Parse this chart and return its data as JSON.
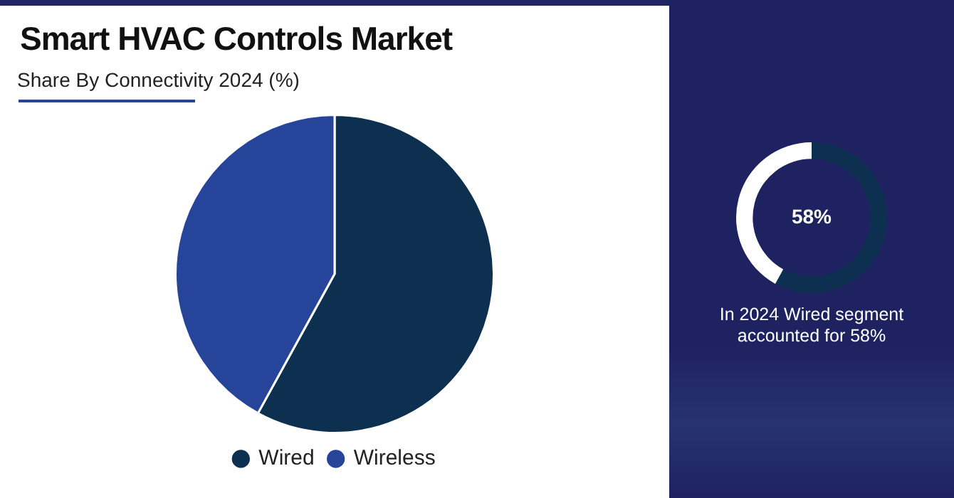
{
  "chart_data": [
    {
      "type": "pie",
      "title": "Smart HVAC Controls Market",
      "subtitle": "Share By Connectivity 2024 (%)",
      "categories": [
        "Wired",
        "Wireless"
      ],
      "values": [
        58,
        42
      ],
      "colors": [
        "#0e3050",
        "#26449a"
      ],
      "legend": "bottom"
    },
    {
      "type": "donut",
      "categories": [
        null,
        null
      ],
      "values": [
        58,
        42
      ],
      "colors": [
        "#0e3050",
        "#ffffff"
      ],
      "annotations": [
        "58%",
        "In 2024 Wired segment accounted for 58%"
      ]
    }
  ]
}
